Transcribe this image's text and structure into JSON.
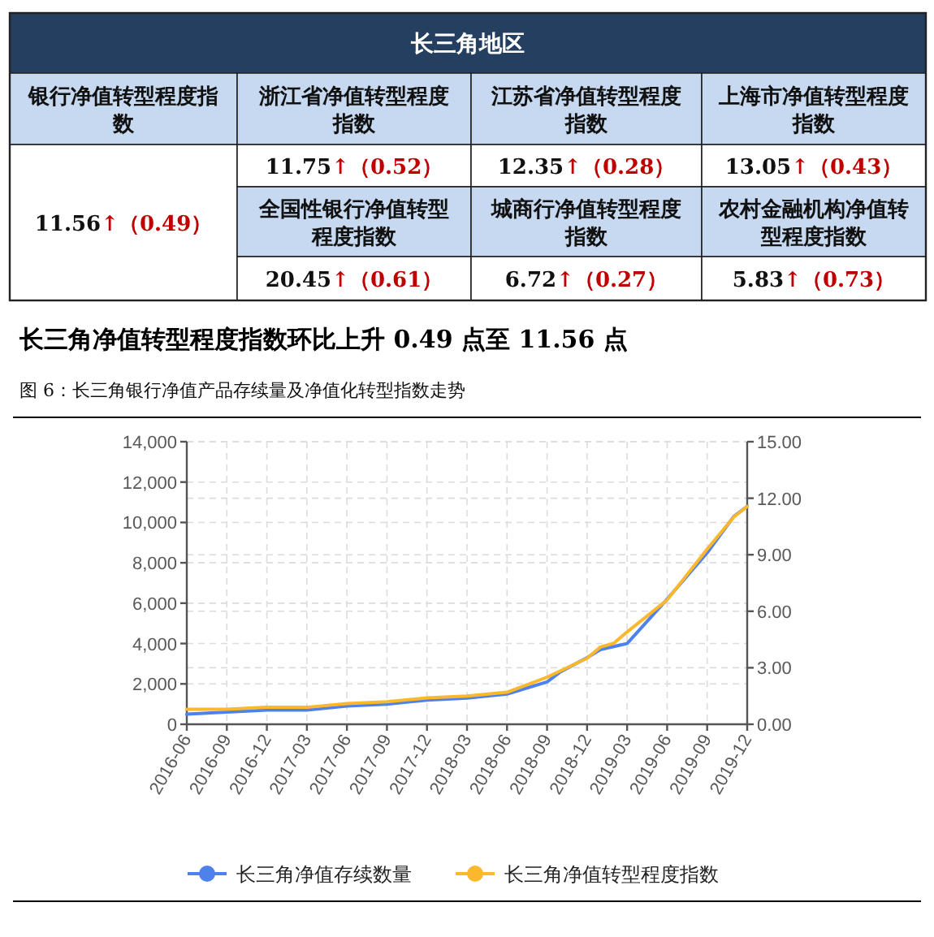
{
  "chart_data": [
    {
      "type": "other",
      "title": "长三角地区",
      "categories": [
        "银行净值转型程度指数",
        "浙江省净值转型程度指数",
        "江苏省净值转型程度指数",
        "上海市净值转型程度指数",
        "全国性银行净值转型程度指数",
        "城商行净值转型程度指数",
        "农村金融机构净值转型程度指数"
      ],
      "value_labels": [
        "11.56↑（0.49）",
        "11.75↑（0.52）",
        "12.35↑（0.28）",
        "13.05↑（0.43）",
        "20.45↑（0.61）",
        "6.72↑（0.27）",
        "5.83↑（0.73）"
      ]
    },
    {
      "type": "line",
      "title": "长三角净值转型程度指数环比上升 0.49 点至 11.56 点",
      "subtitle": "图 6：长三角银行净值产品存续量及净值化转型指数走势",
      "xlim": [
        "2016-06",
        "2019-12"
      ],
      "xticks": [
        "2016-06",
        "2016-09",
        "2016-12",
        "2017-03",
        "2017-06",
        "2017-09",
        "2017-12",
        "2018-03",
        "2018-06",
        "2018-09",
        "2018-12",
        "2019-03",
        "2019-06",
        "2019-09",
        "2019-12"
      ],
      "ylim": [
        0,
        14000
      ],
      "yticks": [
        0,
        {
          "value": 2000,
          "label": "2,000"
        },
        {
          "value": 4000,
          "label": "4,000"
        },
        {
          "value": 6000,
          "label": "6,000"
        },
        {
          "value": 8000,
          "label": "8,000"
        },
        {
          "value": 10000,
          "label": "10,000"
        },
        {
          "value": 12000,
          "label": "12,000"
        },
        {
          "value": 14000,
          "label": "14,000"
        }
      ],
      "y2lim": [
        0,
        15
      ],
      "y2ticks": [
        {
          "value": 0,
          "label": "0.00"
        },
        {
          "value": 3,
          "label": "3.00"
        },
        {
          "value": 6,
          "label": "6.00"
        },
        {
          "value": 9,
          "label": "9.00"
        },
        {
          "value": 12,
          "label": "12.00"
        },
        {
          "value": 15,
          "label": "15.00"
        }
      ],
      "grid": true,
      "legend": "bottom",
      "line_style": "solid",
      "marker": "none",
      "series": [
        {
          "name": "长三角净值存续数量",
          "color": "#4f81ec",
          "x": [
            "2016-06",
            "2016-09",
            "2016-12",
            "2017-03",
            "2017-06",
            "2017-09",
            "2017-12",
            "2018-03",
            "2018-06",
            "2018-07",
            "2018-09",
            "2018-10",
            "2018-12",
            "2019-01",
            "2019-03",
            "2019-06",
            "2019-09",
            "2019-11",
            "2019-12"
          ],
          "values": [
            500,
            600,
            700,
            700,
            900,
            1000,
            1200,
            1300,
            1500,
            1700,
            2100,
            2600,
            3300,
            3700,
            4000,
            6200,
            8500,
            10300,
            10800
          ]
        },
        {
          "name": "长三角净值转型程度指数",
          "color": "#fbb82c",
          "axis": "y2",
          "x": [
            "2016-06",
            "2016-09",
            "2016-12",
            "2017-03",
            "2017-06",
            "2017-09",
            "2017-12",
            "2018-03",
            "2018-06",
            "2018-09",
            "2018-12",
            "2019-01",
            "2019-02",
            "2019-03",
            "2019-06",
            "2019-09",
            "2019-11",
            "2019-12"
          ],
          "values": [
            0.8,
            0.8,
            0.9,
            0.9,
            1.1,
            1.2,
            1.4,
            1.5,
            1.7,
            2.5,
            3.5,
            4.1,
            4.3,
            4.9,
            6.6,
            9.3,
            11.0,
            11.56
          ]
        }
      ]
    }
  ]
}
